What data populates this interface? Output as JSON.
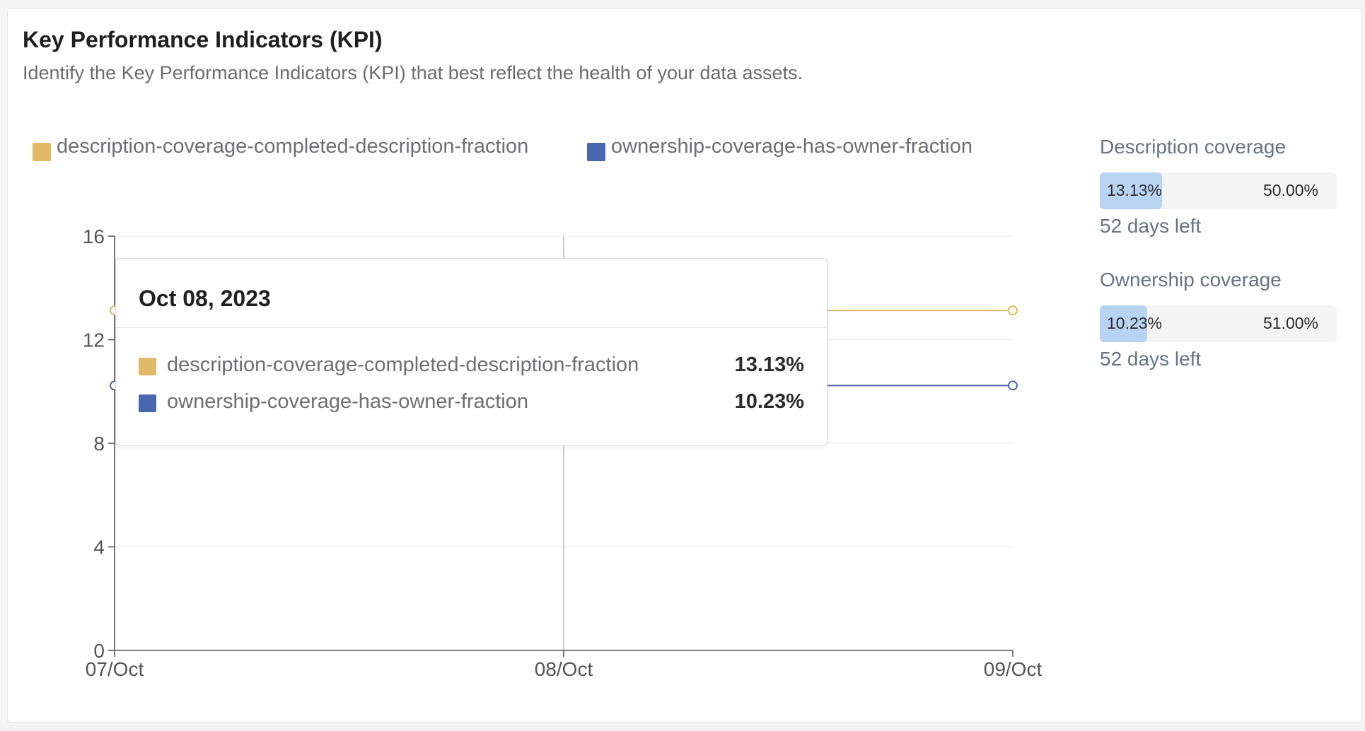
{
  "header": {
    "title": "Key Performance Indicators (KPI)",
    "subtitle": "Identify the Key Performance Indicators (KPI) that best reflect the health of your data assets."
  },
  "legend": [
    {
      "label": "description-coverage-completed-description-fraction",
      "color": "#E0BA67"
    },
    {
      "label": "ownership-coverage-has-owner-fraction",
      "color": "#4A66B0"
    }
  ],
  "chart_data": {
    "type": "line",
    "x": [
      "07/Oct",
      "08/Oct",
      "09/Oct"
    ],
    "ylim": [
      0,
      16
    ],
    "yticks": [
      0,
      4,
      8,
      12,
      16
    ],
    "grid": true,
    "legend_position": "top-left",
    "series": [
      {
        "name": "description-coverage-completed-description-fraction",
        "color": "#E0BA67",
        "values": [
          13.13,
          13.13,
          13.13
        ]
      },
      {
        "name": "ownership-coverage-has-owner-fraction",
        "color": "#4A66B0",
        "values": [
          10.23,
          10.23,
          10.23
        ]
      }
    ],
    "hover_index": 1
  },
  "tooltip": {
    "title": "Oct 08, 2023",
    "rows": [
      {
        "name": "description-coverage-completed-description-fraction",
        "value": "13.13%",
        "color": "#E0BA67"
      },
      {
        "name": "ownership-coverage-has-owner-fraction",
        "value": "10.23%",
        "color": "#4A66B0"
      }
    ]
  },
  "kpis": [
    {
      "label": "Description coverage",
      "current": "13.13%",
      "target": "50.00%",
      "progress": 0.2626,
      "days_left": "52 days left"
    },
    {
      "label": "Ownership coverage",
      "current": "10.23%",
      "target": "51.00%",
      "progress": 0.2006,
      "days_left": "52 days left"
    }
  ]
}
